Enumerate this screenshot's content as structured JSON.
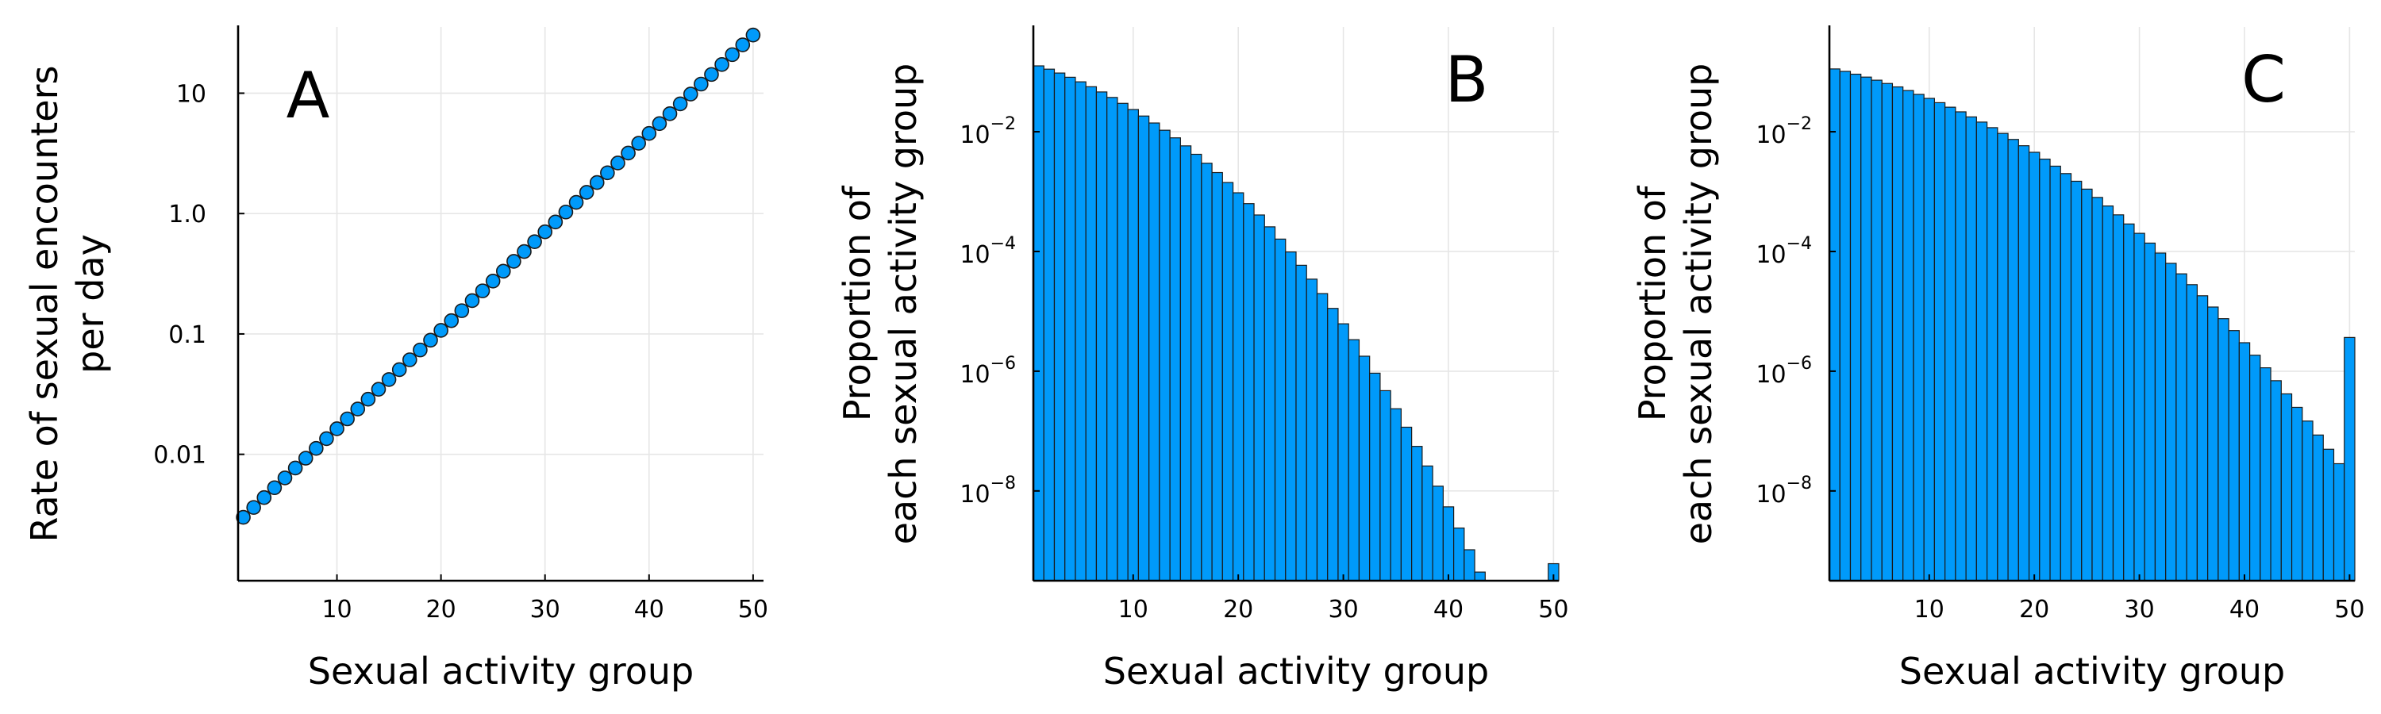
{
  "chart_data": [
    {
      "type": "scatter",
      "panel_label": "A",
      "xlabel": "Sexual activity group",
      "ylabel": [
        "Rate of sexual encounters",
        "per day"
      ],
      "xlim": [
        0.5,
        51
      ],
      "ylim_log10": [
        -3.05,
        1.55
      ],
      "y_scale": "log",
      "x_ticks": [
        10,
        20,
        30,
        40,
        50
      ],
      "y_ticks": [
        {
          "value": 0.01,
          "label": "0.01"
        },
        {
          "value": 0.1,
          "label": "0.1"
        },
        {
          "value": 1.0,
          "label": "1.0"
        },
        {
          "value": 10,
          "label": "10"
        }
      ],
      "grid": true,
      "series": [
        {
          "color": "#009AFA",
          "x": [
            1,
            2,
            3,
            4,
            5,
            6,
            7,
            8,
            9,
            10,
            11,
            12,
            13,
            14,
            15,
            16,
            17,
            18,
            19,
            20,
            21,
            22,
            23,
            24,
            25,
            26,
            27,
            28,
            29,
            30,
            31,
            32,
            33,
            34,
            35,
            36,
            37,
            38,
            39,
            40,
            41,
            42,
            43,
            44,
            45,
            46,
            47,
            48,
            49,
            50
          ],
          "y": [
            0.003,
            0.00362,
            0.00437,
            0.00528,
            0.00637,
            0.00769,
            0.00928,
            0.0112,
            0.0135,
            0.0163,
            0.0197,
            0.0238,
            0.0287,
            0.0347,
            0.0418,
            0.0505,
            0.061,
            0.0736,
            0.0888,
            0.107,
            0.129,
            0.156,
            0.189,
            0.228,
            0.275,
            0.332,
            0.401,
            0.484,
            0.584,
            0.705,
            0.851,
            1.03,
            1.24,
            1.5,
            1.81,
            2.18,
            2.63,
            3.18,
            3.84,
            4.63,
            5.59,
            6.75,
            8.15,
            9.83,
            11.9,
            14.3,
            17.3,
            20.9,
            25.2,
            30.4
          ]
        }
      ]
    },
    {
      "type": "bar",
      "panel_label": "B",
      "xlabel": "Sexual activity group",
      "ylabel": [
        "Proportion of",
        "each sexual activity group"
      ],
      "xlim": [
        0.5,
        50.5
      ],
      "ylim_log10": [
        -9.5,
        -0.25
      ],
      "y_scale": "log",
      "x_ticks": [
        10,
        20,
        30,
        40,
        50
      ],
      "y_ticks": [
        {
          "value": 1e-08,
          "base": "10",
          "exp": "−8"
        },
        {
          "value": 1e-06,
          "base": "10",
          "exp": "−6"
        },
        {
          "value": 0.0001,
          "base": "10",
          "exp": "−4"
        },
        {
          "value": 0.01,
          "base": "10",
          "exp": "−2"
        }
      ],
      "grid": true,
      "series": [
        {
          "color": "#009AFA",
          "x": [
            1,
            2,
            3,
            4,
            5,
            6,
            7,
            8,
            9,
            10,
            11,
            12,
            13,
            14,
            15,
            16,
            17,
            18,
            19,
            20,
            21,
            22,
            23,
            24,
            25,
            26,
            27,
            28,
            29,
            30,
            31,
            32,
            33,
            34,
            35,
            36,
            37,
            38,
            39,
            40,
            41,
            42,
            43,
            44,
            45,
            46,
            47,
            48,
            49,
            50
          ],
          "values": [
            0.126,
            0.111,
            0.0956,
            0.0813,
            0.0682,
            0.0565,
            0.0462,
            0.0374,
            0.0298,
            0.0235,
            0.0183,
            0.014,
            0.0106,
            0.00791,
            0.00581,
            0.0042,
            0.00298,
            0.00208,
            0.00142,
            0.000955,
            0.000629,
            0.000407,
            0.000258,
            0.000161,
            9.82e-05,
            5.88e-05,
            3.45e-05,
            1.98e-05,
            1.12e-05,
            6.19e-06,
            3.36e-06,
            1.78e-06,
            9.27e-07,
            4.73e-07,
            2.36e-07,
            1.16e-07,
            5.55e-08,
            2.61e-08,
            1.2e-08,
            5.42e-09,
            2.4e-09,
            1.04e-09,
            4.41e-10,
            1.83e-10,
            7.45e-11,
            2.97e-11,
            1.16e-11,
            4.43e-12,
            1.66e-12,
            6.09e-10
          ]
        }
      ]
    },
    {
      "type": "bar",
      "panel_label": "C",
      "xlabel": "Sexual activity group",
      "ylabel": [
        "Proportion of",
        "each sexual activity group"
      ],
      "xlim": [
        0.5,
        50.5
      ],
      "ylim_log10": [
        -9.5,
        -0.25
      ],
      "y_scale": "log",
      "x_ticks": [
        10,
        20,
        30,
        40,
        50
      ],
      "y_ticks": [
        {
          "value": 1e-08,
          "base": "10",
          "exp": "−8"
        },
        {
          "value": 1e-06,
          "base": "10",
          "exp": "−6"
        },
        {
          "value": 0.0001,
          "base": "10",
          "exp": "−4"
        },
        {
          "value": 0.01,
          "base": "10",
          "exp": "−2"
        }
      ],
      "grid": true,
      "series": [
        {
          "color": "#009AFA",
          "x": [
            1,
            2,
            3,
            4,
            5,
            6,
            7,
            8,
            9,
            10,
            11,
            12,
            13,
            14,
            15,
            16,
            17,
            18,
            19,
            20,
            21,
            22,
            23,
            24,
            25,
            26,
            27,
            28,
            29,
            30,
            31,
            32,
            33,
            34,
            35,
            36,
            37,
            38,
            39,
            40,
            41,
            42,
            43,
            44,
            45,
            46,
            47,
            48,
            49,
            50
          ],
          "values": [
            0.112,
            0.102,
            0.0915,
            0.0818,
            0.0726,
            0.064,
            0.0561,
            0.0488,
            0.0421,
            0.0361,
            0.0306,
            0.0257,
            0.0215,
            0.0177,
            0.0145,
            0.0117,
            0.00938,
            0.00744,
            0.00584,
            0.00454,
            0.00349,
            0.00266,
            0.002,
            0.00149,
            0.0011,
            0.000799,
            0.000575,
            0.000409,
            0.000288,
            0.000201,
            0.000138,
            9.41e-05,
            6.34e-05,
            4.23e-05,
            2.79e-05,
            1.82e-05,
            1.18e-05,
            7.54e-06,
            4.77e-06,
            2.99e-06,
            1.85e-06,
            1.14e-06,
            6.94e-07,
            4.18e-07,
            2.49e-07,
            1.47e-07,
            8.59e-08,
            4.97e-08,
            2.85e-08,
            3.66e-06
          ]
        }
      ]
    }
  ]
}
